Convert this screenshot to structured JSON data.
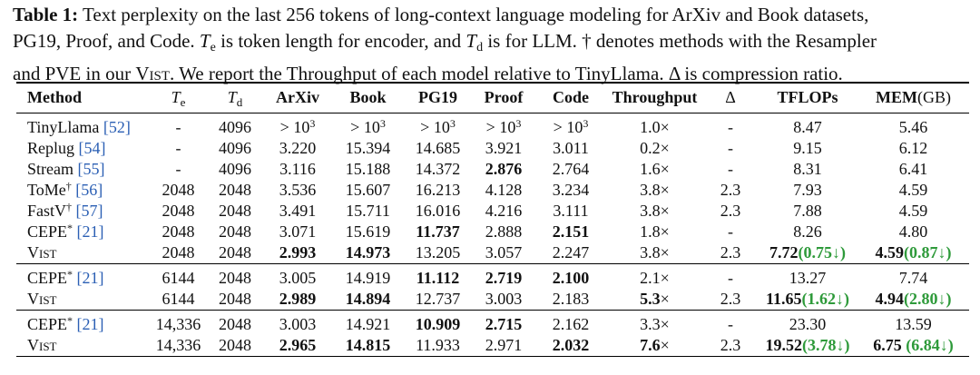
{
  "caption": [
    "Table 1:",
    " Text perplexity on the last 256 tokens of long-context language modeling for ArXiv and Book datasets,",
    "PG19, Proof, and Code. ",
    "T",
    "e",
    " is token length for encoder, and ",
    "T",
    "d",
    " is for LLM. † denotes methods with the Resampler",
    "and PVE in our ",
    "Vist",
    ". We report the Throughput of each model relative to TinyLlama. Δ is compression ratio."
  ],
  "table": {
    "headers": [
      "Method",
      [
        {
          "text": "T",
          "italic": true,
          "bold": false
        },
        {
          "text": "e",
          "sub": true,
          "bold": false
        }
      ],
      [
        {
          "text": "T",
          "italic": true,
          "bold": false
        },
        {
          "text": "d",
          "sub": true,
          "bold": false
        }
      ],
      "ArXiv",
      "Book",
      "PG19",
      "Proof",
      "Code",
      "Throughput",
      {
        "text": "Δ",
        "bold": false
      },
      "TFLOPs",
      [
        "MEM",
        {
          "text": "(GB)",
          "bold": false
        }
      ]
    ],
    "groups": [
      [
        [
          [
            "TinyLlama ",
            {
              "text": "[52]",
              "color": "#2b5fb4"
            }
          ],
          "-",
          "4096",
          [
            "> 10",
            {
              "text": "3",
              "sup": true
            }
          ],
          [
            "> 10",
            {
              "text": "3",
              "sup": true
            }
          ],
          [
            "> 10",
            {
              "text": "3",
              "sup": true
            }
          ],
          [
            "> 10",
            {
              "text": "3",
              "sup": true
            }
          ],
          [
            "> 10",
            {
              "text": "3",
              "sup": true
            }
          ],
          "1.0×",
          "-",
          "8.47",
          "5.46"
        ],
        [
          [
            "Replug ",
            {
              "text": "[54]",
              "color": "#2b5fb4"
            }
          ],
          "-",
          "4096",
          "3.220",
          "15.394",
          "14.685",
          "3.921",
          "3.011",
          "0.2×",
          "-",
          "9.15",
          "6.12"
        ],
        [
          [
            "Stream ",
            {
              "text": "[55]",
              "color": "#2b5fb4"
            }
          ],
          "-",
          "4096",
          "3.116",
          "15.188",
          "14.372",
          {
            "text": "2.876",
            "bold": true
          },
          "2.764",
          "1.6×",
          "-",
          "8.31",
          "6.41"
        ],
        [
          [
            "ToMe",
            {
              "text": "†",
              "sup": true
            },
            " ",
            {
              "text": "[56]",
              "color": "#2b5fb4"
            }
          ],
          "2048",
          "2048",
          "3.536",
          "15.607",
          "16.213",
          "4.128",
          "3.234",
          "3.8×",
          "2.3",
          "7.93",
          "4.59"
        ],
        [
          [
            "FastV",
            {
              "text": "†",
              "sup": true
            },
            " ",
            {
              "text": "[57]",
              "color": "#2b5fb4"
            }
          ],
          "2048",
          "2048",
          "3.491",
          "15.711",
          "16.016",
          "4.216",
          "3.111",
          "3.8×",
          "2.3",
          "7.88",
          "4.59"
        ],
        [
          [
            "CEPE",
            {
              "text": "*",
              "sup": true
            },
            " ",
            {
              "text": "[21]",
              "color": "#2b5fb4"
            }
          ],
          "2048",
          "2048",
          "3.071",
          "15.619",
          {
            "text": "11.737",
            "bold": true
          },
          "2.888",
          {
            "text": "2.151",
            "bold": true
          },
          "1.8×",
          "-",
          "8.26",
          "4.80"
        ],
        [
          {
            "text": "Vist",
            "small_caps": true
          },
          "2048",
          "2048",
          {
            "text": "2.993",
            "bold": true
          },
          {
            "text": "14.973",
            "bold": true
          },
          "13.205",
          "3.057",
          "2.247",
          "3.8×",
          "2.3",
          [
            {
              "text": "7.72",
              "bold": true
            },
            {
              "text": "(0.75↓)",
              "bold": true,
              "color": "#2e9a3a"
            }
          ],
          [
            {
              "text": "4.59",
              "bold": true
            },
            {
              "text": "(0.87↓)",
              "bold": true,
              "color": "#2e9a3a"
            }
          ]
        ]
      ],
      [
        [
          [
            "CEPE",
            {
              "text": "*",
              "sup": true
            },
            " ",
            {
              "text": "[21]",
              "color": "#2b5fb4"
            }
          ],
          "6144",
          "2048",
          "3.005",
          "14.919",
          {
            "text": "11.112",
            "bold": true
          },
          {
            "text": "2.719",
            "bold": true
          },
          {
            "text": "2.100",
            "bold": true
          },
          "2.1×",
          "-",
          "13.27",
          "7.74"
        ],
        [
          {
            "text": "Vist",
            "small_caps": true
          },
          "6144",
          "2048",
          {
            "text": "2.989",
            "bold": true
          },
          {
            "text": "14.894",
            "bold": true
          },
          "12.737",
          "3.003",
          "2.183",
          [
            {
              "text": "5.3",
              "bold": true
            },
            "×"
          ],
          "2.3",
          [
            {
              "text": "11.65",
              "bold": true
            },
            {
              "text": "(1.62↓)",
              "bold": true,
              "color": "#2e9a3a"
            }
          ],
          [
            {
              "text": "4.94",
              "bold": true
            },
            {
              "text": "(2.80↓)",
              "bold": true,
              "color": "#2e9a3a"
            }
          ]
        ]
      ],
      [
        [
          [
            "CEPE",
            {
              "text": "*",
              "sup": true
            },
            " ",
            {
              "text": "[21]",
              "color": "#2b5fb4"
            }
          ],
          "14,336",
          "2048",
          "3.003",
          "14.921",
          {
            "text": "10.909",
            "bold": true
          },
          {
            "text": "2.715",
            "bold": true
          },
          "2.162",
          "3.3×",
          "-",
          "23.30",
          "13.59"
        ],
        [
          {
            "text": "Vist",
            "small_caps": true
          },
          "14,336",
          "2048",
          {
            "text": "2.965",
            "bold": true
          },
          {
            "text": "14.815",
            "bold": true
          },
          "11.933",
          "2.971",
          {
            "text": "2.032",
            "bold": true
          },
          [
            {
              "text": "7.6",
              "bold": true
            },
            "×"
          ],
          "2.3",
          [
            {
              "text": "19.52",
              "bold": true
            },
            {
              "text": "(3.78↓)",
              "bold": true,
              "color": "#2e9a3a"
            }
          ],
          [
            {
              "text": "6.75",
              "bold": true
            },
            {
              "text": " (6.84↓)",
              "bold": true,
              "color": "#2e9a3a"
            }
          ]
        ]
      ]
    ]
  }
}
